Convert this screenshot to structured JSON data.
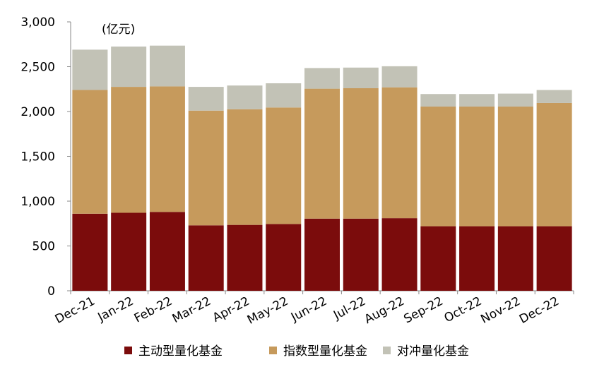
{
  "chart_data": {
    "type": "bar",
    "stacked": true,
    "unit_label": "(亿元)",
    "categories": [
      "Dec-21",
      "Jan-22",
      "Feb-22",
      "Mar-22",
      "Apr-22",
      "May-22",
      "Jun-22",
      "Jul-22",
      "Aug-22",
      "Sep-22",
      "Oct-22",
      "Nov-22",
      "Dec-22"
    ],
    "series": [
      {
        "name": "主动型量化基金",
        "color": "#7b0c0c",
        "values": [
          860,
          870,
          880,
          730,
          735,
          745,
          805,
          805,
          810,
          720,
          720,
          720,
          720
        ]
      },
      {
        "name": "指数型量化基金",
        "color": "#c69a5c",
        "values": [
          1380,
          1405,
          1400,
          1280,
          1290,
          1300,
          1450,
          1455,
          1460,
          1335,
          1335,
          1335,
          1375
        ]
      },
      {
        "name": "对冲量化基金",
        "color": "#c2c2b6",
        "values": [
          450,
          450,
          455,
          265,
          265,
          270,
          230,
          230,
          235,
          140,
          140,
          145,
          145
        ]
      }
    ],
    "ylim": [
      0,
      3000
    ],
    "yticks": [
      0,
      500,
      1000,
      1500,
      2000,
      2500,
      3000
    ],
    "ytick_labels": [
      "0",
      "500",
      "1,000",
      "1,500",
      "2,000",
      "2,500",
      "3,000"
    ],
    "grid": false,
    "legend_position": "bottom"
  }
}
